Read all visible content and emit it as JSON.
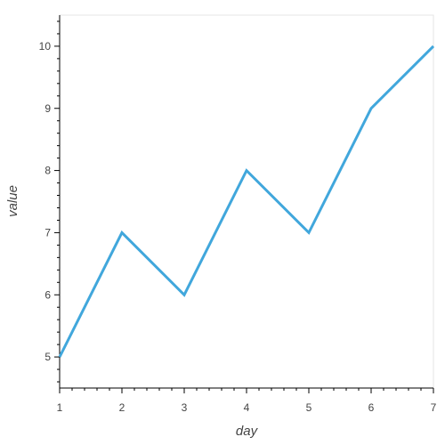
{
  "chart_data": {
    "type": "line",
    "title": "",
    "xlabel": "day",
    "ylabel": "value",
    "x": [
      1,
      2,
      3,
      4,
      5,
      6,
      7
    ],
    "series": [
      {
        "values": [
          5,
          7,
          6,
          8,
          7,
          9,
          10
        ],
        "color": "#41a7dc"
      }
    ],
    "xlim": [
      1,
      7
    ],
    "ylim": [
      4.5,
      10.5
    ],
    "xticks": [
      1,
      2,
      3,
      4,
      5,
      6,
      7
    ],
    "yticks": [
      5,
      6,
      7,
      8,
      9,
      10
    ],
    "grid": false,
    "legend": "none",
    "axis_color": "#000000",
    "frame_color": "#e5e5e5"
  }
}
